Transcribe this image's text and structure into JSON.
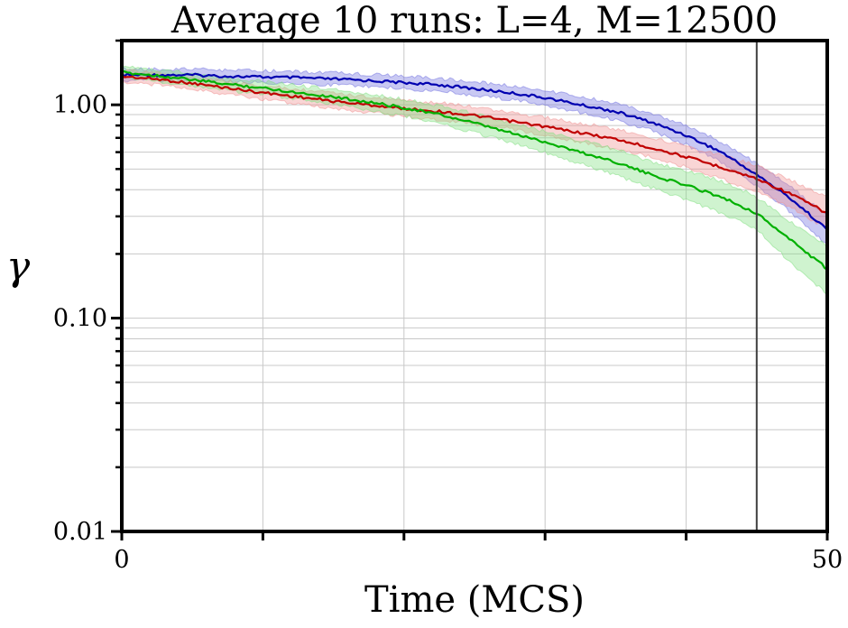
{
  "chart_data": {
    "type": "line",
    "title": "Average 10 runs: L=4, M=12500",
    "xlabel": "Time (MCS)",
    "ylabel": "γ",
    "xlim": [
      0,
      50
    ],
    "ylim": [
      0.01,
      2.0
    ],
    "yscale": "log",
    "grid": true,
    "x_ticks": [
      0,
      50
    ],
    "x_tick_labels": [
      "0",
      "50"
    ],
    "x_minor_ticks": [
      10,
      20,
      30,
      40
    ],
    "y_ticks": [
      0.01,
      0.1,
      1.0
    ],
    "y_tick_labels": [
      "0.01",
      "0.10",
      "1.00"
    ],
    "vline_x": 45,
    "x": [
      0,
      2.5,
      5,
      7.5,
      10,
      12.5,
      15,
      17.5,
      20,
      22.5,
      25,
      27.5,
      30,
      32.5,
      35,
      37.5,
      40,
      42.5,
      45,
      47.5,
      50
    ],
    "series": [
      {
        "color": "#0000b0",
        "band_color": "#7070e0",
        "values": [
          1.38,
          1.38,
          1.38,
          1.36,
          1.35,
          1.34,
          1.32,
          1.3,
          1.27,
          1.24,
          1.19,
          1.14,
          1.08,
          1.0,
          0.93,
          0.83,
          0.72,
          0.6,
          0.47,
          0.36,
          0.26
        ],
        "lower": [
          1.3,
          1.3,
          1.3,
          1.28,
          1.27,
          1.26,
          1.24,
          1.22,
          1.19,
          1.16,
          1.11,
          1.06,
          1.0,
          0.92,
          0.85,
          0.76,
          0.65,
          0.54,
          0.42,
          0.31,
          0.22
        ],
        "upper": [
          1.47,
          1.47,
          1.47,
          1.45,
          1.44,
          1.43,
          1.41,
          1.39,
          1.36,
          1.33,
          1.28,
          1.23,
          1.17,
          1.09,
          1.02,
          0.91,
          0.8,
          0.67,
          0.53,
          0.41,
          0.3
        ]
      },
      {
        "color": "#c00000",
        "band_color": "#f09090",
        "values": [
          1.36,
          1.32,
          1.26,
          1.2,
          1.14,
          1.09,
          1.04,
          1.0,
          0.96,
          0.93,
          0.89,
          0.84,
          0.79,
          0.74,
          0.69,
          0.63,
          0.57,
          0.51,
          0.45,
          0.38,
          0.31
        ],
        "lower": [
          1.28,
          1.24,
          1.18,
          1.12,
          1.06,
          1.01,
          0.96,
          0.92,
          0.88,
          0.85,
          0.81,
          0.77,
          0.72,
          0.67,
          0.62,
          0.57,
          0.51,
          0.45,
          0.39,
          0.33,
          0.26
        ],
        "upper": [
          1.45,
          1.41,
          1.35,
          1.29,
          1.23,
          1.18,
          1.13,
          1.09,
          1.05,
          1.02,
          0.98,
          0.92,
          0.87,
          0.82,
          0.77,
          0.7,
          0.64,
          0.58,
          0.52,
          0.44,
          0.37
        ]
      },
      {
        "color": "#00b000",
        "band_color": "#80e080",
        "values": [
          1.42,
          1.37,
          1.31,
          1.25,
          1.2,
          1.14,
          1.09,
          1.03,
          0.97,
          0.9,
          0.82,
          0.74,
          0.67,
          0.6,
          0.54,
          0.47,
          0.42,
          0.37,
          0.31,
          0.23,
          0.17
        ],
        "lower": [
          1.34,
          1.29,
          1.23,
          1.17,
          1.12,
          1.06,
          1.01,
          0.95,
          0.89,
          0.82,
          0.74,
          0.67,
          0.6,
          0.53,
          0.47,
          0.41,
          0.36,
          0.31,
          0.26,
          0.18,
          0.13
        ],
        "upper": [
          1.51,
          1.46,
          1.4,
          1.34,
          1.29,
          1.23,
          1.18,
          1.12,
          1.06,
          0.99,
          0.91,
          0.82,
          0.75,
          0.68,
          0.62,
          0.54,
          0.49,
          0.44,
          0.37,
          0.28,
          0.22
        ]
      }
    ]
  }
}
